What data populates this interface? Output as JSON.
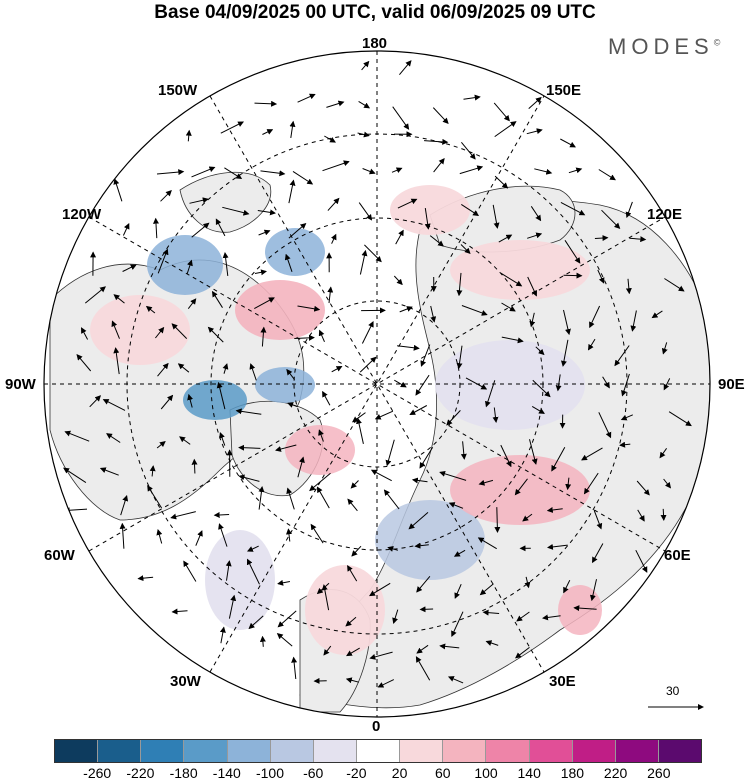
{
  "title": "Base 04/09/2025 00 UTC, valid 06/09/2025 09 UTC",
  "brand": {
    "name": "MODES",
    "mark": "©"
  },
  "longitude_labels": {
    "lon_180": "180",
    "lon_150w": "150W",
    "lon_150e": "150E",
    "lon_120w": "120W",
    "lon_120e": "120E",
    "lon_90w": "90W",
    "lon_90e": "90E",
    "lon_60w": "60W",
    "lon_60e": "60E",
    "lon_30w": "30W",
    "lon_30e": "30E",
    "lon_0": "0"
  },
  "vector_scale": {
    "label": "30"
  },
  "colorbar": {
    "colors": [
      "#0d3b5e",
      "#1a5e8c",
      "#2f7fb5",
      "#5a9bc8",
      "#8db3d9",
      "#b9c8e2",
      "#e4e2ef",
      "#ffffff",
      "#f8d9dc",
      "#f4b4bf",
      "#ee84a8",
      "#e14f97",
      "#c01e86",
      "#8e0a7f",
      "#5b0a6e"
    ],
    "ticks": [
      "-260",
      "-220",
      "-180",
      "-140",
      "-100",
      "-60",
      "-20",
      "20",
      "60",
      "100",
      "140",
      "180",
      "220",
      "260"
    ]
  }
}
